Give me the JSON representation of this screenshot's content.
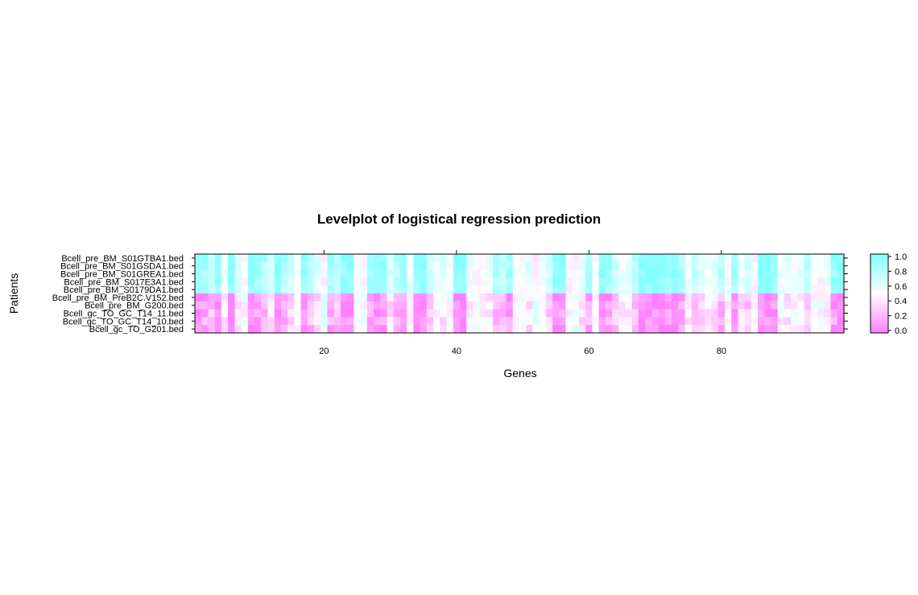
{
  "chart_data": {
    "type": "heatmap",
    "title": "Levelplot of logistical regression prediction",
    "xlabel": "Genes",
    "ylabel": "Patients",
    "xlim": [
      0.5,
      98.5
    ],
    "x_ticks": [
      20,
      40,
      60,
      80
    ],
    "n_genes": 98,
    "rows": [
      "Bcell_pre_BM_S01GTBA1.bed",
      "Bcell_pre_BM_S01GSDA1.bed",
      "Bcell_pre_BM_S01GREA1.bed",
      "Bcell_pre_BM_S017E3A1.bed",
      "Bcell_pre_BM_S0179DA1.bed",
      "Bcell_pre_BM_PreB2C.V152.bed",
      "Bcell_pre_BM_G200.bed",
      "Bcell_gc_TO_GC_T14_11.bed",
      "Bcell_gc_TO_GC_T14_10.bed",
      "Bcell_gc_TO_G201.bed"
    ],
    "zlim": [
      0,
      1
    ],
    "colorbar": {
      "ticks": [
        1.0,
        0.8,
        0.6,
        0.4,
        0.2,
        0.0
      ],
      "tick_labels": [
        "1.0",
        "0.8",
        "0.6",
        "0.4",
        "0.2",
        "0.0"
      ],
      "low_color": "#ff80ff",
      "mid_color": "#ffffff",
      "high_color": "#80ffff"
    },
    "gene_profile": [
      0.95,
      0.88,
      0.75,
      0.93,
      0.55,
      0.98,
      0.62,
      0.5,
      0.97,
      0.92,
      0.8,
      0.62,
      0.97,
      0.85,
      0.7,
      0.55,
      0.93,
      0.8,
      0.62,
      0.45,
      0.85,
      0.75,
      0.95,
      0.98,
      0.52,
      0.48,
      0.85,
      0.97,
      0.92,
      0.65,
      0.8,
      0.88,
      0.58,
      0.96,
      0.98,
      0.7,
      0.55,
      0.62,
      0.5,
      0.97,
      0.95,
      0.6,
      0.48,
      0.52,
      0.62,
      0.8,
      0.75,
      0.88,
      0.55,
      0.5,
      0.62,
      0.42,
      0.58,
      0.7,
      0.97,
      0.92,
      0.48,
      0.45,
      0.62,
      0.82,
      0.5,
      0.97,
      0.88,
      0.7,
      0.55,
      0.6,
      0.82,
      0.97,
      0.98,
      0.98,
      0.98,
      0.92,
      0.97,
      0.85,
      0.55,
      0.75,
      0.65,
      0.55,
      0.62,
      0.8,
      0.52,
      0.88,
      0.6,
      0.7,
      0.48,
      0.97,
      0.98,
      0.92,
      0.55,
      0.6,
      0.52,
      0.62,
      0.78,
      0.5,
      0.48,
      0.55,
      0.92,
      0.98
    ],
    "row_strength": [
      1.0,
      0.97,
      0.94,
      0.9,
      0.85,
      -0.95,
      -0.9,
      -0.85,
      -0.8,
      -0.92
    ]
  }
}
